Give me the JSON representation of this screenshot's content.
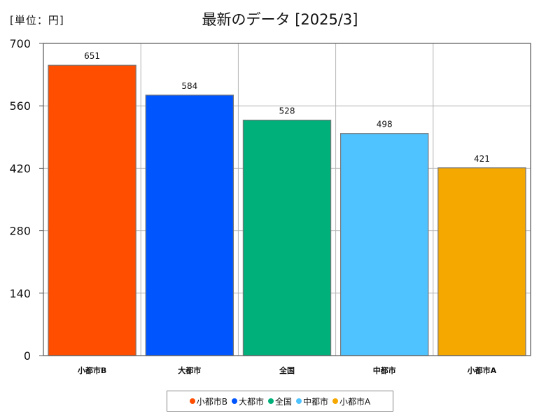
{
  "header": {
    "unit_label": "[単位：円]",
    "title": "最新のデータ [2025/3]"
  },
  "chart_data": {
    "type": "bar",
    "title": "最新のデータ [2025/3]",
    "unit": "[単位：円]",
    "categories": [
      "小都市B",
      "大都市",
      "全国",
      "中都市",
      "小都市A"
    ],
    "values": [
      651,
      584,
      528,
      498,
      421
    ],
    "colors": [
      "#ff4e00",
      "#0055ff",
      "#00b07a",
      "#4fc3ff",
      "#f5a800"
    ],
    "ylim": [
      0,
      700
    ],
    "yticks": [
      0,
      140,
      280,
      420,
      560,
      700
    ],
    "grid": true,
    "legend_placement": "bottom"
  }
}
